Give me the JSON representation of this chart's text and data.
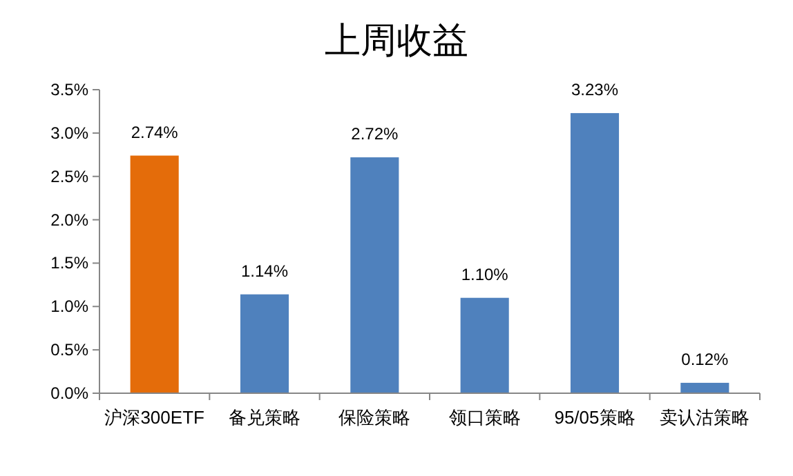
{
  "chart_data": {
    "type": "bar",
    "title": "上周收益",
    "categories": [
      "沪深300ETF",
      "备兑策略",
      "保险策略",
      "领口策略",
      "95/05策略",
      "卖认沽策略"
    ],
    "values": [
      2.74,
      1.14,
      2.72,
      1.1,
      3.23,
      0.12
    ],
    "colors": [
      "#e46c0a",
      "#4f81bd",
      "#4f81bd",
      "#4f81bd",
      "#4f81bd",
      "#4f81bd"
    ],
    "value_labels": [
      "2.74%",
      "1.14%",
      "2.72%",
      "1.10%",
      "3.23%",
      "0.12%"
    ],
    "ylim": [
      0,
      3.5
    ],
    "yticks": [
      {
        "value": 0,
        "label": "0.0%"
      },
      {
        "value": 0.5,
        "label": "0.5%"
      },
      {
        "value": 1,
        "label": "1.0%"
      },
      {
        "value": 1.5,
        "label": "1.5%"
      },
      {
        "value": 2,
        "label": "2.0%"
      },
      {
        "value": 2.5,
        "label": "2.5%"
      },
      {
        "value": 3,
        "label": "3.0%"
      },
      {
        "value": 3.5,
        "label": "3.5%"
      }
    ],
    "grid": false
  }
}
